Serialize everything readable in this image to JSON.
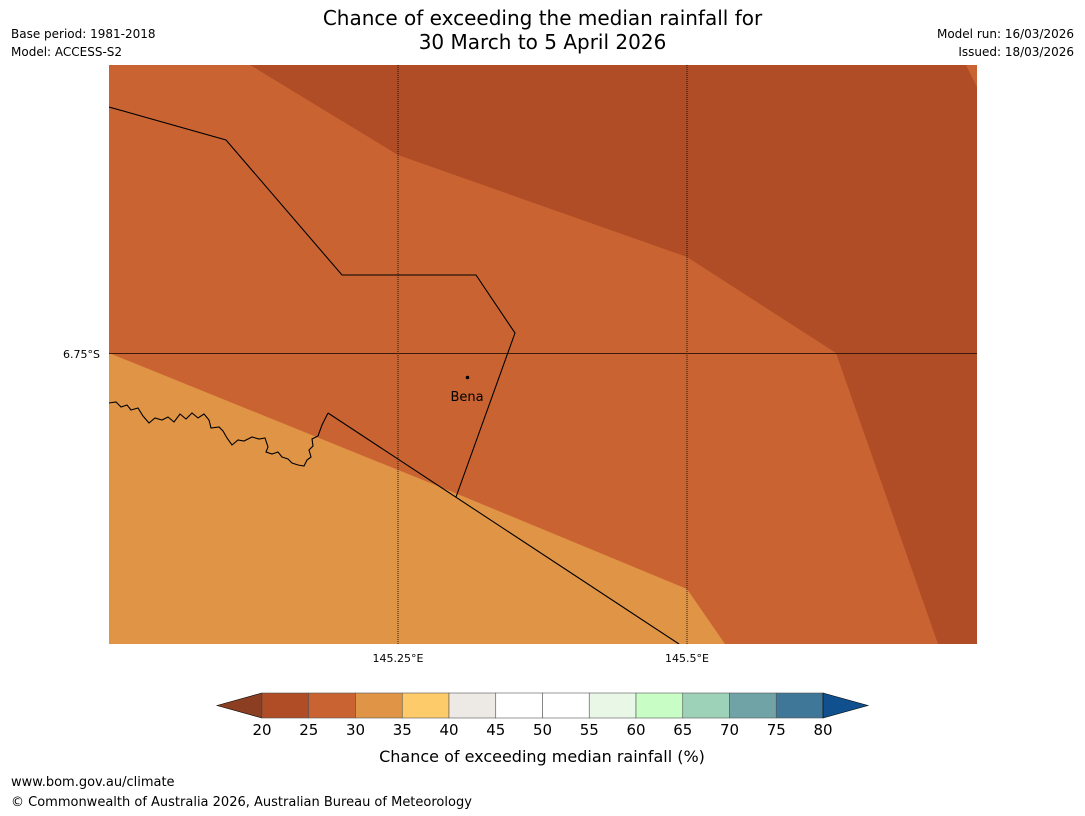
{
  "title": {
    "line1": "Chance of exceeding the median rainfall for",
    "line2": "30 March to 5 April 2026"
  },
  "meta": {
    "base_period": "Base period: 1981-2018",
    "model": "Model: ACCESS-S2",
    "model_run": "Model run: 16/03/2026",
    "issued": "Issued: 18/03/2026"
  },
  "map": {
    "lat_label": "6.75°S",
    "lon_labels": [
      "145.25°E",
      "145.5°E"
    ],
    "place_label": "Bena"
  },
  "legend": {
    "title": "Chance of exceeding median rainfall (%)",
    "ticks": [
      "20",
      "25",
      "30",
      "35",
      "40",
      "45",
      "50",
      "55",
      "60",
      "65",
      "70",
      "75",
      "80"
    ],
    "colors": [
      "#b04c26",
      "#c96432",
      "#e09446",
      "#fdcb6a",
      "#ede9e5",
      "#ffffff",
      "#ffffff",
      "#e8f7e6",
      "#c8fdc6",
      "#9dd2b9",
      "#6fa3a6",
      "#3f7798"
    ],
    "low_color": "#8b3e22",
    "high_color": "#10508e"
  },
  "footer": {
    "url": "www.bom.gov.au/climate",
    "copyright": "© Commonwealth of Australia 2026, Australian Bureau of Meteorology"
  }
}
